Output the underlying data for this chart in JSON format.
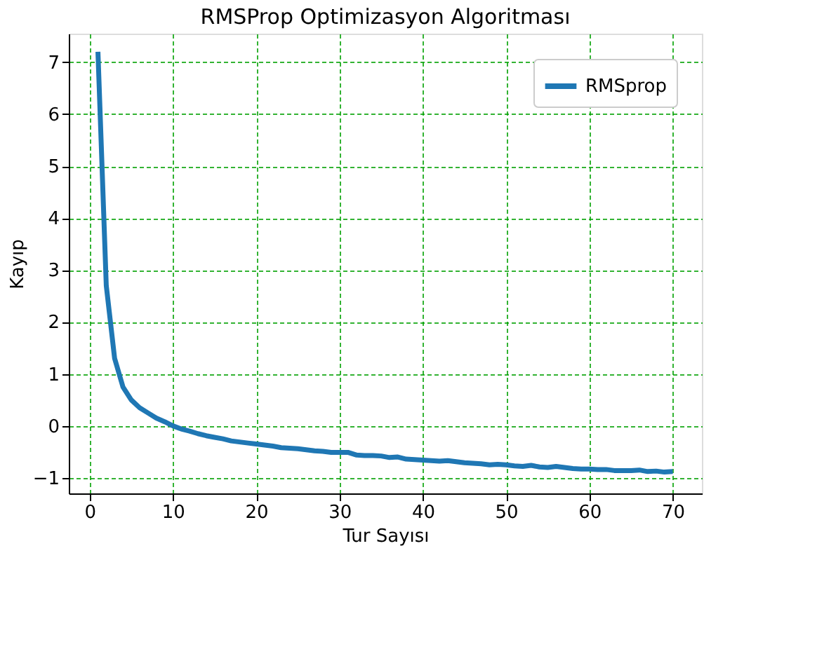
{
  "chart_data": {
    "type": "line",
    "title": "RMSProp Optimizasyon Algoritması",
    "xlabel": "Tur Sayısı",
    "ylabel": "Kayıp",
    "x": [
      1,
      2,
      3,
      4,
      5,
      6,
      7,
      8,
      9,
      10,
      11,
      12,
      13,
      14,
      15,
      16,
      17,
      18,
      19,
      20,
      21,
      22,
      23,
      24,
      25,
      26,
      27,
      28,
      29,
      30,
      31,
      32,
      33,
      34,
      35,
      36,
      37,
      38,
      39,
      40,
      41,
      42,
      43,
      44,
      45,
      46,
      47,
      48,
      49,
      50,
      51,
      52,
      53,
      54,
      55,
      56,
      57,
      58,
      59,
      60,
      61,
      62,
      63,
      64,
      65,
      66,
      67,
      68,
      69,
      70
    ],
    "series": [
      {
        "name": "RMSprop",
        "color": "#1f77b4",
        "values": [
          7.2,
          2.7,
          1.3,
          0.75,
          0.5,
          0.35,
          0.25,
          0.15,
          0.08,
          0.0,
          -0.06,
          -0.1,
          -0.15,
          -0.19,
          -0.22,
          -0.25,
          -0.29,
          -0.31,
          -0.33,
          -0.35,
          -0.37,
          -0.39,
          -0.42,
          -0.43,
          -0.44,
          -0.46,
          -0.48,
          -0.49,
          -0.51,
          -0.51,
          -0.51,
          -0.56,
          -0.57,
          -0.57,
          -0.58,
          -0.61,
          -0.6,
          -0.64,
          -0.65,
          -0.66,
          -0.67,
          -0.68,
          -0.67,
          -0.69,
          -0.71,
          -0.72,
          -0.73,
          -0.75,
          -0.74,
          -0.75,
          -0.77,
          -0.78,
          -0.76,
          -0.79,
          -0.8,
          -0.78,
          -0.8,
          -0.82,
          -0.83,
          -0.83,
          -0.84,
          -0.84,
          -0.86,
          -0.86,
          -0.86,
          -0.85,
          -0.88,
          -0.87,
          -0.89,
          -0.88
        ]
      }
    ],
    "xlim": [
      -2.5,
      73.5
    ],
    "ylim": [
      -1.3,
      7.55
    ],
    "xticks": [
      0,
      10,
      20,
      30,
      40,
      50,
      60,
      70
    ],
    "yticks": [
      -1,
      0,
      1,
      2,
      3,
      4,
      5,
      6,
      7
    ],
    "grid": true,
    "legend": "top right",
    "line_style": "solid",
    "marker": "none"
  }
}
